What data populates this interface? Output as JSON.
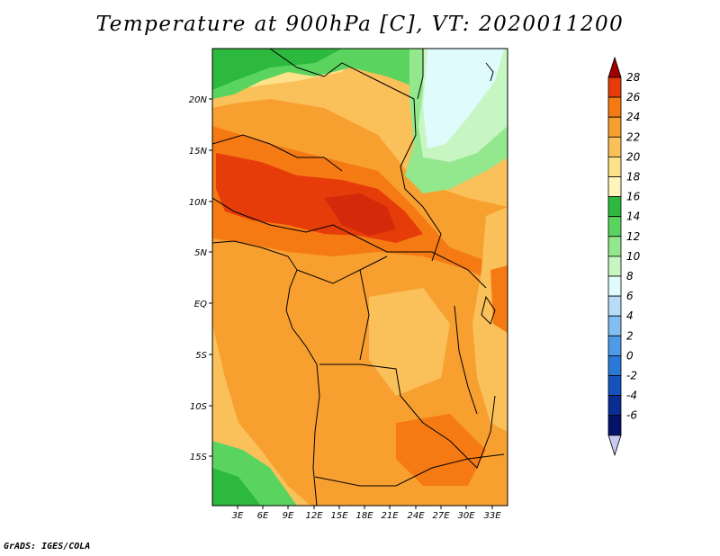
{
  "title": "Temperature at 900hPa [C], VT: 2020011200",
  "footer": "GrADS: IGES/COLA",
  "map": {
    "lon_labels": [
      "3E",
      "6E",
      "9E",
      "12E",
      "15E",
      "18E",
      "21E",
      "24E",
      "27E",
      "30E",
      "33E"
    ],
    "lat_labels": [
      "20N",
      "15N",
      "10N",
      "5N",
      "EQ",
      "5S",
      "10S",
      "15S"
    ],
    "field": "air temperature at 900 hPa",
    "units": "C"
  },
  "colorbar": {
    "labels": [
      "28",
      "26",
      "24",
      "22",
      "20",
      "18",
      "16",
      "14",
      "12",
      "10",
      "8",
      "6",
      "4",
      "2",
      "0",
      "-2",
      "-4",
      "-6"
    ],
    "colors": [
      "#a00000",
      "#e63c0a",
      "#f57a14",
      "#f7a030",
      "#fac05a",
      "#fde28a",
      "#fff5bb",
      "#2db93e",
      "#5bd45f",
      "#93e88d",
      "#c7f6c3",
      "#e0fbfc",
      "#b6dcf8",
      "#83bef0",
      "#4f9be8",
      "#2a79d8",
      "#1552bd",
      "#0a2d93",
      "#05126a",
      "#c8c8f0"
    ]
  }
}
